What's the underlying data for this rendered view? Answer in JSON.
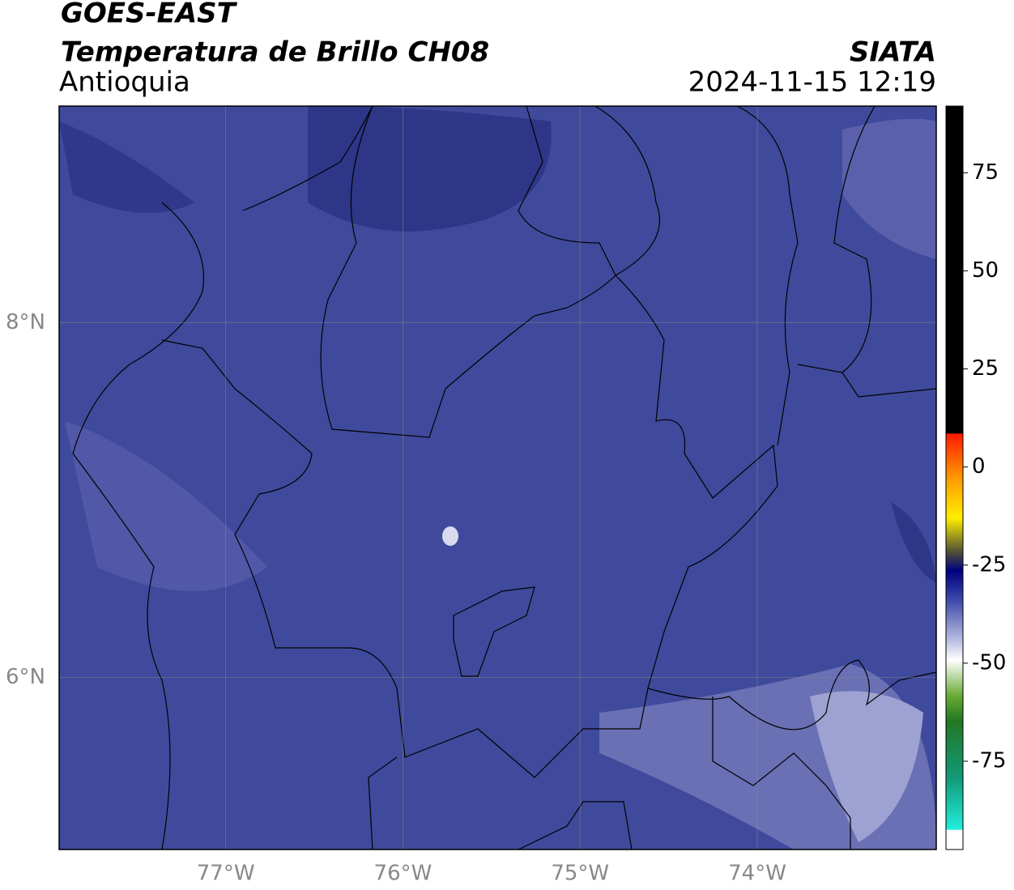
{
  "header": {
    "title": "GOES-EAST",
    "subtitle": "Temperatura de Brillo CH08",
    "region": "Antioquia",
    "source": "SIATA",
    "datetime": "2024-11-15 12:19"
  },
  "map": {
    "xlim": [
      -77.94,
      -72.99
    ],
    "ylim": [
      5.03,
      9.22
    ],
    "xticks": [
      {
        "value": -77,
        "label": "77°W"
      },
      {
        "value": -76,
        "label": "76°W"
      },
      {
        "value": -75,
        "label": "75°W"
      },
      {
        "value": -74,
        "label": "74°W"
      }
    ],
    "yticks": [
      {
        "value": 8,
        "label": "8°N"
      },
      {
        "value": 6,
        "label": "6°N"
      }
    ],
    "grid": true
  },
  "colorbar": {
    "lim": [
      -97.5,
      92
    ],
    "ticks": [
      75,
      50,
      25,
      0,
      -25,
      -50,
      -75
    ]
  }
}
